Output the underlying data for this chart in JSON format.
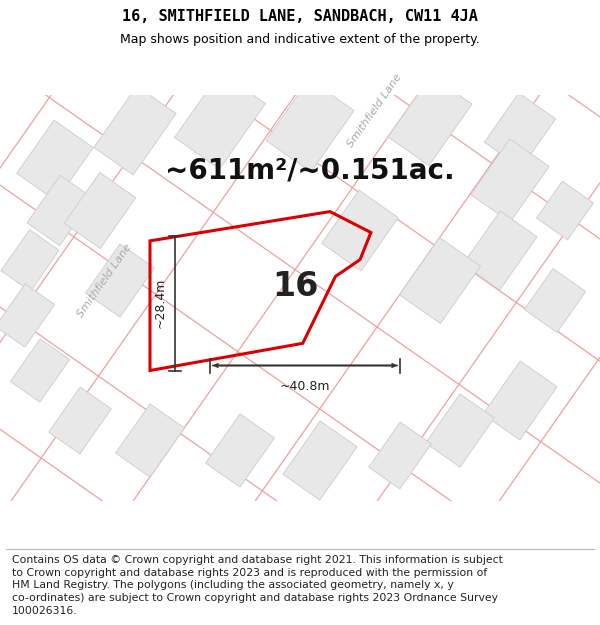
{
  "title": "16, SMITHFIELD LANE, SANDBACH, CW11 4JA",
  "subtitle": "Map shows position and indicative extent of the property.",
  "area_text": "~611m²/~0.151ac.",
  "property_label": "16",
  "dim_horizontal": "~40.8m",
  "dim_vertical": "~28.4m",
  "road_label": "Smithfield Lane",
  "footer_lines": [
    "Contains OS data © Crown copyright and database right 2021. This information is subject",
    "to Crown copyright and database rights 2023 and is reproduced with the permission of",
    "HM Land Registry. The polygons (including the associated geometry, namely x, y",
    "co-ordinates) are subject to Crown copyright and database rights 2023 Ordnance Survey",
    "100026316."
  ],
  "map_bg_color": "#ffffff",
  "road_color": "#f0a0a0",
  "building_fill_color": "#e8e8e8",
  "building_edge_color": "#cccccc",
  "property_outline_color": "#dd0000",
  "title_fontsize": 11,
  "subtitle_fontsize": 9,
  "area_fontsize": 20,
  "property_label_fontsize": 24,
  "footer_fontsize": 7.8,
  "dim_fontsize": 9,
  "road_label_fontsize": 8
}
